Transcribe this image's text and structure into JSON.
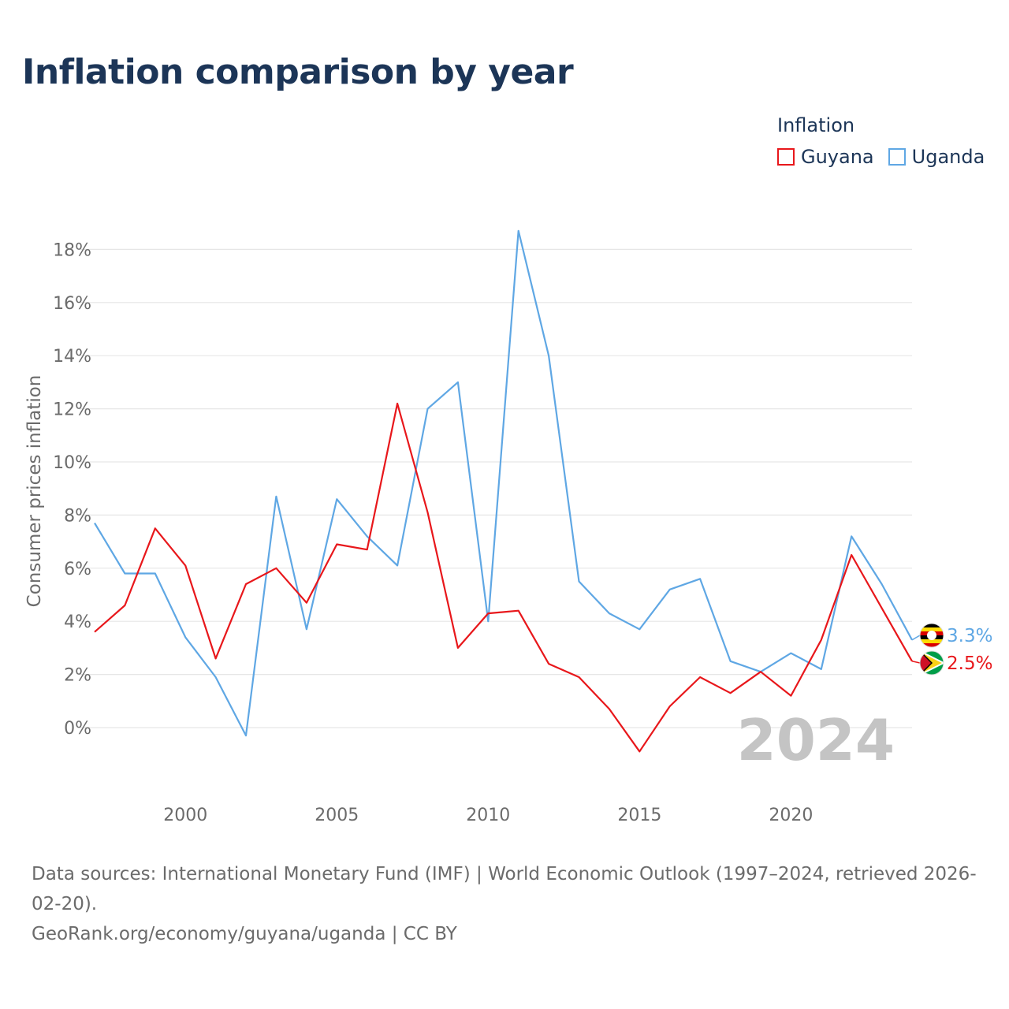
{
  "title": "Inflation comparison by year",
  "legend": {
    "title": "Inflation",
    "items": [
      {
        "label": "Guyana",
        "color": "#e8171b"
      },
      {
        "label": "Uganda",
        "color": "#5fa7e4"
      }
    ]
  },
  "footer": {
    "sources": "Data sources: International Monetary Fund (IMF) | World Economic Outlook (1997–2024, retrieved 2026-02-20).",
    "credit": "GeoRank.org/economy/guyana/uganda | CC BY"
  },
  "chart_data": {
    "type": "line",
    "title": "Inflation comparison by year",
    "xlabel": "",
    "ylabel": "Consumer prices inflation",
    "x": [
      1997,
      1998,
      1999,
      2000,
      2001,
      2002,
      2003,
      2004,
      2005,
      2006,
      2007,
      2008,
      2009,
      2010,
      2011,
      2012,
      2013,
      2014,
      2015,
      2016,
      2017,
      2018,
      2019,
      2020,
      2021,
      2022,
      2023,
      2024
    ],
    "xlim": [
      1997,
      2024
    ],
    "ylim": [
      -2,
      19
    ],
    "x_ticks": [
      2000,
      2005,
      2010,
      2015,
      2020
    ],
    "y_ticks": [
      0,
      2,
      4,
      6,
      8,
      10,
      12,
      14,
      16,
      18
    ],
    "y_tick_labels": [
      "0%",
      "2%",
      "4%",
      "6%",
      "8%",
      "10%",
      "12%",
      "14%",
      "16%",
      "18%"
    ],
    "grid": true,
    "legend_position": "top-right",
    "watermark_year": "2024",
    "series": [
      {
        "name": "Guyana",
        "color": "#e8171b",
        "end_label": "2.5%",
        "flag": "guyana-flag",
        "values": [
          3.6,
          4.6,
          7.5,
          6.1,
          2.6,
          5.4,
          6.0,
          4.7,
          6.9,
          6.7,
          12.2,
          8.1,
          3.0,
          4.3,
          4.4,
          2.4,
          1.9,
          0.7,
          -0.9,
          0.8,
          1.9,
          1.3,
          2.1,
          1.2,
          3.3,
          6.5,
          4.5,
          2.5
        ]
      },
      {
        "name": "Uganda",
        "color": "#5fa7e4",
        "end_label": "3.3%",
        "flag": "uganda-flag",
        "values": [
          7.7,
          5.8,
          5.8,
          3.4,
          1.9,
          -0.3,
          8.7,
          3.7,
          8.6,
          7.2,
          6.1,
          12.0,
          13.0,
          4.0,
          18.7,
          14.0,
          5.5,
          4.3,
          3.7,
          5.2,
          5.6,
          2.5,
          2.1,
          2.8,
          2.2,
          7.2,
          5.4,
          3.3
        ]
      }
    ]
  }
}
